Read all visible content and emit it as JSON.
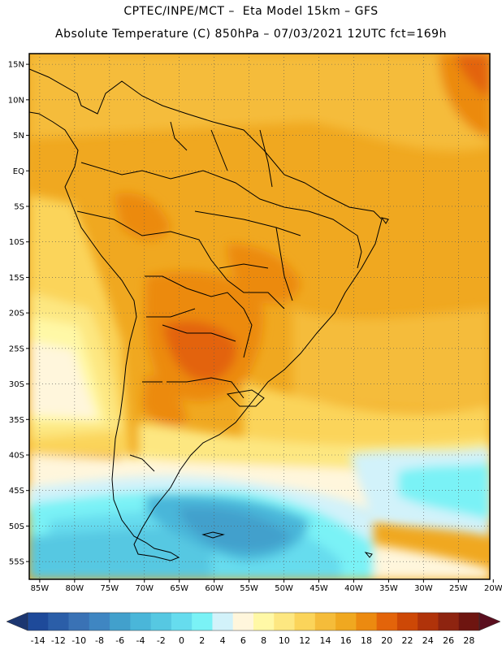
{
  "header": {
    "line1": "CPTEC/INPE/MCT –  Eta Model 15km – GFS",
    "line2": "Absolute Temperature (C) 850hPa – 07/03/2021 12UTC fct=169h"
  },
  "map": {
    "lat_labels": [
      "15N",
      "10N",
      "5N",
      "EQ",
      "5S",
      "10S",
      "15S",
      "20S",
      "25S",
      "30S",
      "35S",
      "40S",
      "45S",
      "50S",
      "55S"
    ],
    "lon_labels": [
      "85W",
      "80W",
      "75W",
      "70W",
      "65W",
      "60W",
      "55W",
      "50W",
      "45W",
      "40W",
      "35W",
      "30W",
      "25W",
      "20W"
    ],
    "lat_range": [
      16.5,
      -57.5
    ],
    "lon_range": [
      -86.5,
      -20.5
    ],
    "gridlines": "dotted",
    "border_color": "#000000",
    "coast_color": "#000000"
  },
  "colorbar": {
    "labels": [
      "-14",
      "-12",
      "-10",
      "-8",
      "-6",
      "-4",
      "-2",
      "0",
      "2",
      "4",
      "6",
      "8",
      "10",
      "12",
      "14",
      "16",
      "18",
      "20",
      "22",
      "24",
      "26",
      "28"
    ],
    "colors": [
      "#1e4a9a",
      "#2b5ea8",
      "#3a72b5",
      "#3f86c2",
      "#42a0cc",
      "#4ab6d9",
      "#56c8e2",
      "#66dcee",
      "#7af2f6",
      "#d2f2fa",
      "#fff6dc",
      "#fff8a6",
      "#fde781",
      "#fbd45a",
      "#f5bc3a",
      "#f0a820",
      "#ec8a10",
      "#e3640a",
      "#cd4806",
      "#b0330a",
      "#8e2410",
      "#6e1510"
    ],
    "left_arrow_color": "#1c3670",
    "right_arrow_color": "#5a0e1e"
  }
}
